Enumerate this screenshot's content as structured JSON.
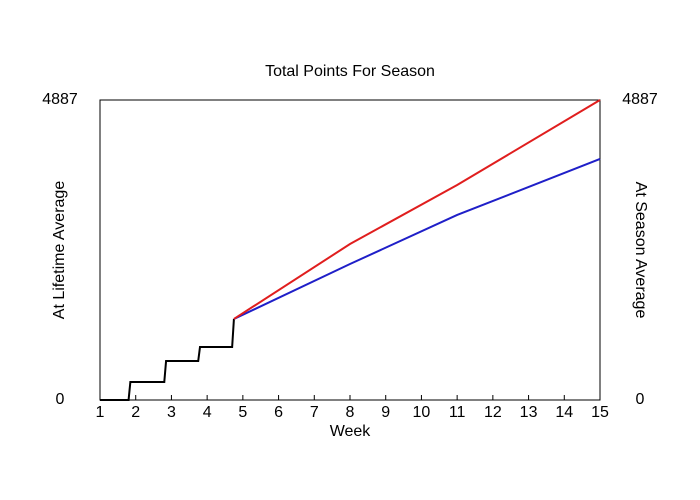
{
  "chart_data": {
    "type": "line",
    "title": "Total Points For Season",
    "xlabel": "Week",
    "ylabel": "At Lifetime Average",
    "y2label": "At Season Average",
    "ylabel_color": "#1f1fc8",
    "y2label_color": "#e01e1e",
    "xlim": [
      1,
      15
    ],
    "xticks": [
      1,
      2,
      3,
      4,
      5,
      6,
      7,
      8,
      9,
      10,
      11,
      12,
      13,
      14,
      15
    ],
    "ylim": [
      0,
      4887
    ],
    "yticks": [
      0,
      4887
    ],
    "y2lim": [
      0,
      4887
    ],
    "y2ticks": [
      0,
      4887
    ],
    "grid": false,
    "series": [
      {
        "color": "#000000",
        "x": [
          1,
          1.8,
          1.85,
          2.8,
          2.85,
          3.75,
          3.8,
          4.7,
          4.75
        ],
        "values": [
          0,
          0,
          293,
          293,
          635,
          635,
          863,
          863,
          1320
        ]
      },
      {
        "color": "#1f1fc8",
        "x": [
          4.75,
          8,
          11,
          15
        ],
        "values": [
          1320,
          2215,
          3014,
          3926
        ]
      },
      {
        "color": "#e01e1e",
        "axis": "y2",
        "x": [
          4.75,
          8,
          11,
          15
        ],
        "values": [
          1320,
          2541,
          3502,
          4887
        ]
      }
    ]
  }
}
